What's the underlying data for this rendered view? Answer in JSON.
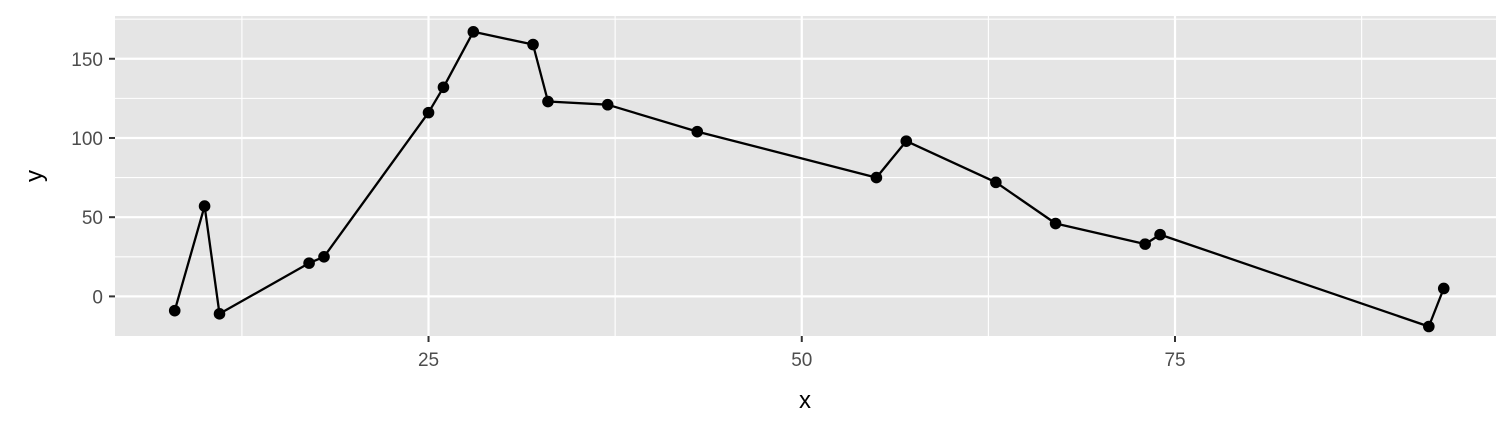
{
  "chart_data": {
    "type": "line",
    "title": "",
    "xlabel": "x",
    "ylabel": "y",
    "xlim": [
      4,
      96.5
    ],
    "ylim": [
      -25,
      177
    ],
    "x_ticks": [
      25,
      50,
      75
    ],
    "x_tick_labels": [
      "25",
      "50",
      "75"
    ],
    "y_ticks": [
      0,
      50,
      100,
      150
    ],
    "y_tick_labels": [
      "0",
      "50",
      "100",
      "150"
    ],
    "grid": true,
    "legend": "none",
    "colors": {
      "panel_background": "#e5e5e5",
      "grid_major": "#ffffff",
      "line": "#000000",
      "point": "#000000"
    },
    "series": [
      {
        "x": [
          8,
          10,
          11,
          17,
          18,
          25,
          26,
          28,
          32,
          33,
          37,
          43,
          55,
          57,
          63,
          67,
          73,
          74,
          92,
          93
        ],
        "y": [
          -9,
          57,
          -11,
          21,
          25,
          116,
          132,
          167,
          159,
          123,
          121,
          104,
          75,
          98,
          72,
          46,
          33,
          39,
          -19,
          5
        ]
      }
    ]
  }
}
